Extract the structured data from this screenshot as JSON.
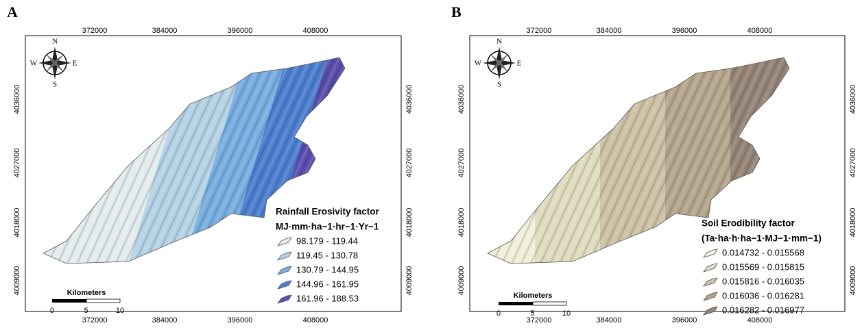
{
  "panels": [
    {
      "label": "A",
      "x_ticks": [
        "372000",
        "384000",
        "396000",
        "408000"
      ],
      "y_ticks": [
        "4036000",
        "4027000",
        "4018000",
        "4009000"
      ],
      "compass": {
        "n": "N",
        "s": "S",
        "e": "E",
        "w": "W"
      },
      "scale_bar": {
        "title": "Kilometers",
        "labels": [
          "0",
          "5",
          "10"
        ]
      },
      "legend": {
        "title": "Rainfall Erosivity factor",
        "subtitle": "MJ·mm·ha−1·hr−1·Yr−1",
        "items": [
          {
            "label": "98.179 - 119.44",
            "color": "#e4ecee"
          },
          {
            "label": "119.45 - 130.78",
            "color": "#b5d3e6"
          },
          {
            "label": "130.79 - 144.95",
            "color": "#78aee0"
          },
          {
            "label": "144.96 - 161.95",
            "color": "#4d7fcf"
          },
          {
            "label": "161.96 - 188.53",
            "color": "#5b4fae"
          }
        ]
      }
    },
    {
      "label": "B",
      "x_ticks": [
        "372000",
        "384000",
        "396000",
        "408000"
      ],
      "y_ticks": [
        "4036000",
        "4027000",
        "4018000",
        "4009000"
      ],
      "compass": {
        "n": "N",
        "s": "S",
        "e": "E",
        "w": "W"
      },
      "scale_bar": {
        "title": "Kilometers",
        "labels": [
          "0",
          "5",
          "10"
        ]
      },
      "legend": {
        "title": "Soil Erodibility factor",
        "subtitle": "(Ta·ha·h·ha−1·MJ−1·mm−1)",
        "items": [
          {
            "label": "0.014732 - 0.015568",
            "color": "#f1efd9"
          },
          {
            "label": "0.015569 - 0.015815",
            "color": "#e0dcbf"
          },
          {
            "label": "0.015816 - 0.016035",
            "color": "#cdc2a6"
          },
          {
            "label": "0.016036 - 0.016281",
            "color": "#b6a68e"
          },
          {
            "label": "0.016282 - 0.016977",
            "color": "#968576"
          }
        ]
      }
    }
  ]
}
